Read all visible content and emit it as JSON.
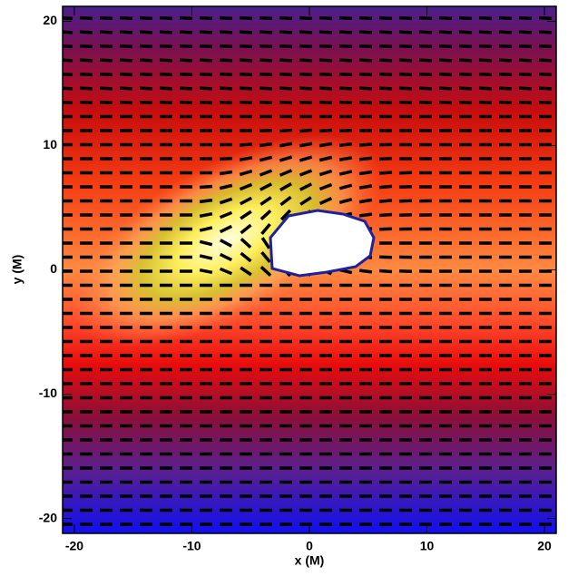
{
  "chart_data": {
    "type": "heatmap",
    "xlabel": "x (M)",
    "ylabel": "y (M)",
    "xlim": [
      -21,
      21
    ],
    "ylim": [
      -21.2,
      21.2
    ],
    "xticks": [
      -20,
      -10,
      0,
      10,
      20
    ],
    "yticks": [
      -20,
      -10,
      0,
      10,
      20
    ]
  }
}
